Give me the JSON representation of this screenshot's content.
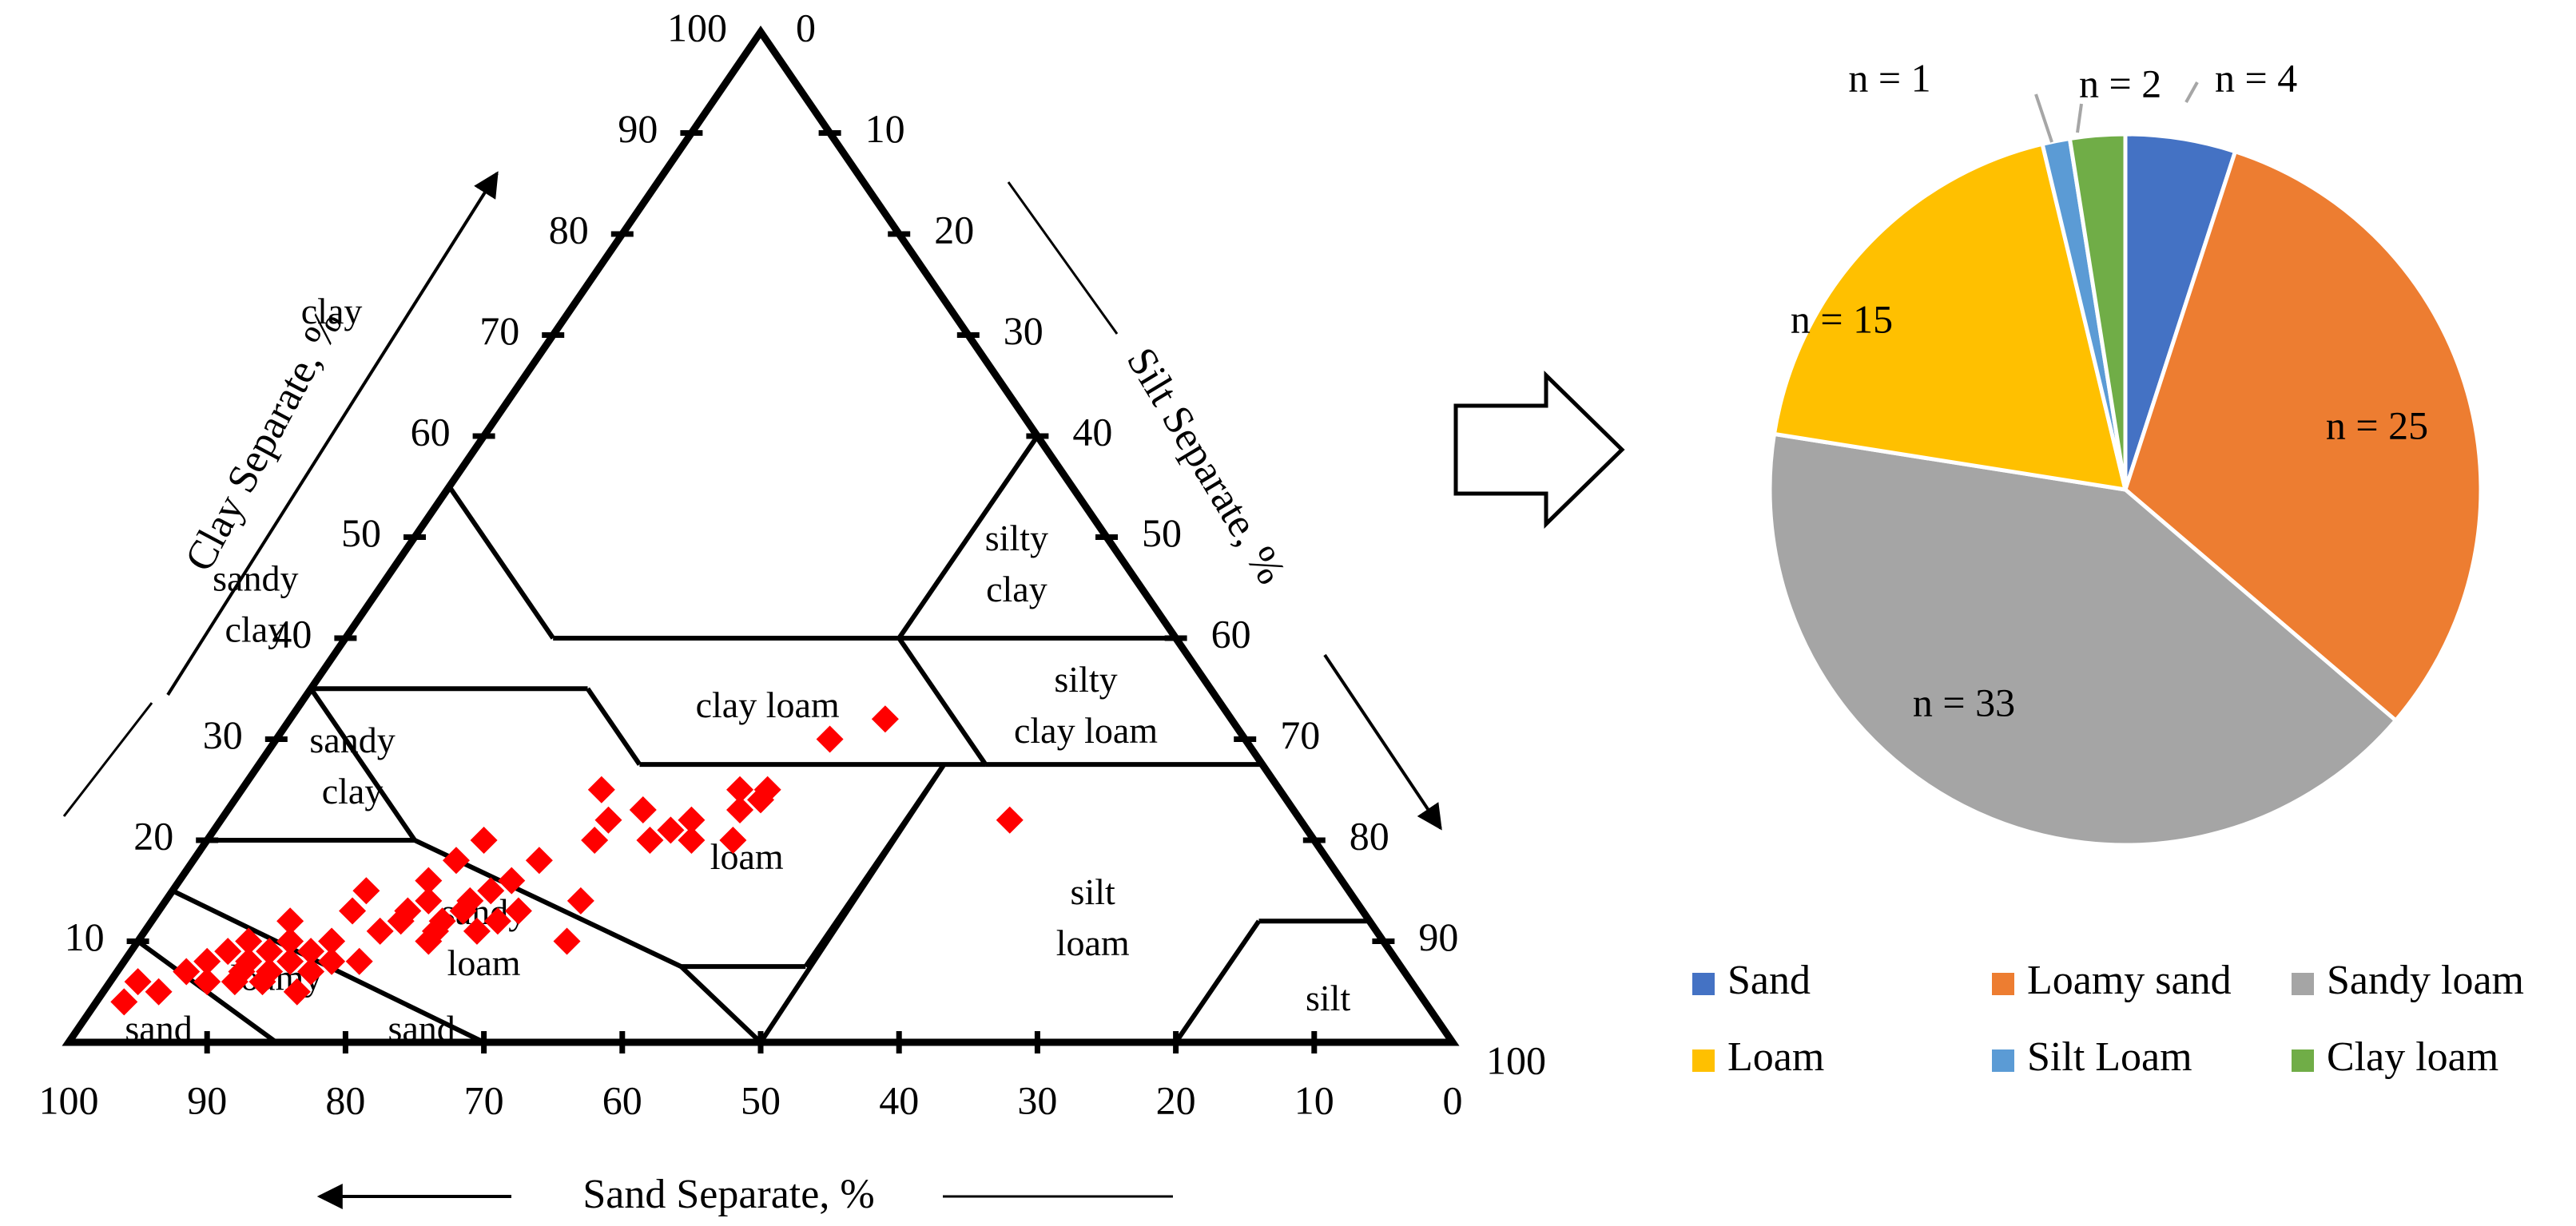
{
  "chart_data": [
    {
      "type": "scatter",
      "subtype": "soil-texture-triangle",
      "axes": {
        "clay": {
          "title": "Clay Separate, %",
          "ticks": [
            10,
            20,
            30,
            40,
            50,
            60,
            70,
            80,
            90,
            100
          ],
          "range": [
            0,
            100
          ]
        },
        "silt": {
          "title": "Silt Separate, %",
          "ticks": [
            0,
            10,
            20,
            30,
            40,
            50,
            60,
            70,
            80,
            90,
            100
          ],
          "range": [
            0,
            100
          ]
        },
        "sand": {
          "title": "Sand Separate, %",
          "ticks": [
            100,
            90,
            80,
            70,
            60,
            50,
            40,
            30,
            20,
            10,
            0
          ],
          "range": [
            0,
            100
          ]
        }
      },
      "regions": [
        {
          "lines": [
            "clay"
          ],
          "sand": 45,
          "clay": 72
        },
        {
          "lines": [
            "silty",
            "clay"
          ],
          "sand": 8,
          "clay": 47
        },
        {
          "lines": [
            "sandy",
            "clay"
          ],
          "sand": 65,
          "clay": 43
        },
        {
          "lines": [
            "clay loam"
          ],
          "sand": 33,
          "clay": 33
        },
        {
          "lines": [
            "silty",
            "clay loam"
          ],
          "sand": 10,
          "clay": 33
        },
        {
          "lines": [
            "sandy",
            "clay"
          ],
          "sand": 66,
          "clay": 27
        },
        {
          "lines": [
            "loam"
          ],
          "sand": 42,
          "clay": 18
        },
        {
          "lines": [
            "sandy",
            "loam"
          ],
          "sand": 65,
          "clay": 10
        },
        {
          "lines": [
            "silt",
            "loam"
          ],
          "sand": 20,
          "clay": 12
        },
        {
          "lines": [
            "silt"
          ],
          "sand": 7,
          "clay": 4
        },
        {
          "lines": [
            "loamy"
          ],
          "sand": 82,
          "clay": 6
        },
        {
          "lines": [
            "sand"
          ],
          "sand": 74,
          "clay": 1
        },
        {
          "lines": [
            "sand"
          ],
          "sand": 93,
          "clay": 1
        }
      ],
      "points": [
        {
          "sand": 94,
          "clay": 4
        },
        {
          "sand": 92,
          "clay": 6
        },
        {
          "sand": 91,
          "clay": 5
        },
        {
          "sand": 88,
          "clay": 7
        },
        {
          "sand": 87,
          "clay": 6
        },
        {
          "sand": 86,
          "clay": 8
        },
        {
          "sand": 85,
          "clay": 6
        },
        {
          "sand": 84,
          "clay": 9
        },
        {
          "sand": 84,
          "clay": 7
        },
        {
          "sand": 83,
          "clay": 8
        },
        {
          "sand": 83,
          "clay": 6
        },
        {
          "sand": 82,
          "clay": 10
        },
        {
          "sand": 82,
          "clay": 7
        },
        {
          "sand": 81,
          "clay": 9
        },
        {
          "sand": 81,
          "clay": 5
        },
        {
          "sand": 80,
          "clay": 8
        },
        {
          "sand": 79,
          "clay": 10
        },
        {
          "sand": 79,
          "clay": 7
        },
        {
          "sand": 78,
          "clay": 12
        },
        {
          "sand": 78,
          "clay": 9
        },
        {
          "sand": 77,
          "clay": 8
        },
        {
          "sand": 76,
          "clay": 10
        },
        {
          "sand": 75,
          "clay": 8
        },
        {
          "sand": 73,
          "clay": 13
        },
        {
          "sand": 72,
          "clay": 11
        },
        {
          "sand": 71,
          "clay": 15
        },
        {
          "sand": 70,
          "clay": 12
        },
        {
          "sand": 69,
          "clay": 13
        },
        {
          "sand": 69,
          "clay": 10
        },
        {
          "sand": 68,
          "clay": 11
        },
        {
          "sand": 67,
          "clay": 14
        },
        {
          "sand": 67,
          "clay": 12
        },
        {
          "sand": 66,
          "clay": 16
        },
        {
          "sand": 65,
          "clay": 13
        },
        {
          "sand": 65,
          "clay": 11
        },
        {
          "sand": 64,
          "clay": 14
        },
        {
          "sand": 63,
          "clay": 18
        },
        {
          "sand": 63,
          "clay": 12
        },
        {
          "sand": 62,
          "clay": 15
        },
        {
          "sand": 61,
          "clay": 13
        },
        {
          "sand": 60,
          "clay": 20
        },
        {
          "sand": 60,
          "clay": 16
        },
        {
          "sand": 59,
          "clay": 10
        },
        {
          "sand": 57,
          "clay": 18
        },
        {
          "sand": 56,
          "clay": 14
        },
        {
          "sand": 52,
          "clay": 20
        },
        {
          "sand": 50,
          "clay": 22
        },
        {
          "sand": 49,
          "clay": 25
        },
        {
          "sand": 48,
          "clay": 20
        },
        {
          "sand": 47,
          "clay": 23
        },
        {
          "sand": 46,
          "clay": 21
        },
        {
          "sand": 45,
          "clay": 20
        },
        {
          "sand": 44,
          "clay": 22
        },
        {
          "sand": 42,
          "clay": 20
        },
        {
          "sand": 40,
          "clay": 23
        },
        {
          "sand": 39,
          "clay": 25
        },
        {
          "sand": 38,
          "clay": 24
        },
        {
          "sand": 37,
          "clay": 25
        },
        {
          "sand": 30,
          "clay": 30
        },
        {
          "sand": 25,
          "clay": 32
        },
        {
          "sand": 21,
          "clay": 22
        }
      ],
      "point_color": "#ff0000",
      "grid": false
    },
    {
      "type": "pie",
      "slices": [
        {
          "name": "Sand",
          "value": 4,
          "label": "n = 4",
          "color": "#4472c4"
        },
        {
          "name": "Loamy sand",
          "value": 25,
          "label": "n = 25",
          "color": "#ed7d31"
        },
        {
          "name": "Sandy loam",
          "value": 33,
          "label": "n = 33",
          "color": "#a5a5a5"
        },
        {
          "name": "Loam",
          "value": 15,
          "label": "n = 15",
          "color": "#ffc000"
        },
        {
          "name": "Silt Loam",
          "value": 1,
          "label": "n = 1",
          "color": "#5b9bd5"
        },
        {
          "name": "Clay loam",
          "value": 2,
          "label": "n = 2",
          "color": "#70ad47"
        }
      ],
      "legend_placement": "bottom"
    }
  ]
}
